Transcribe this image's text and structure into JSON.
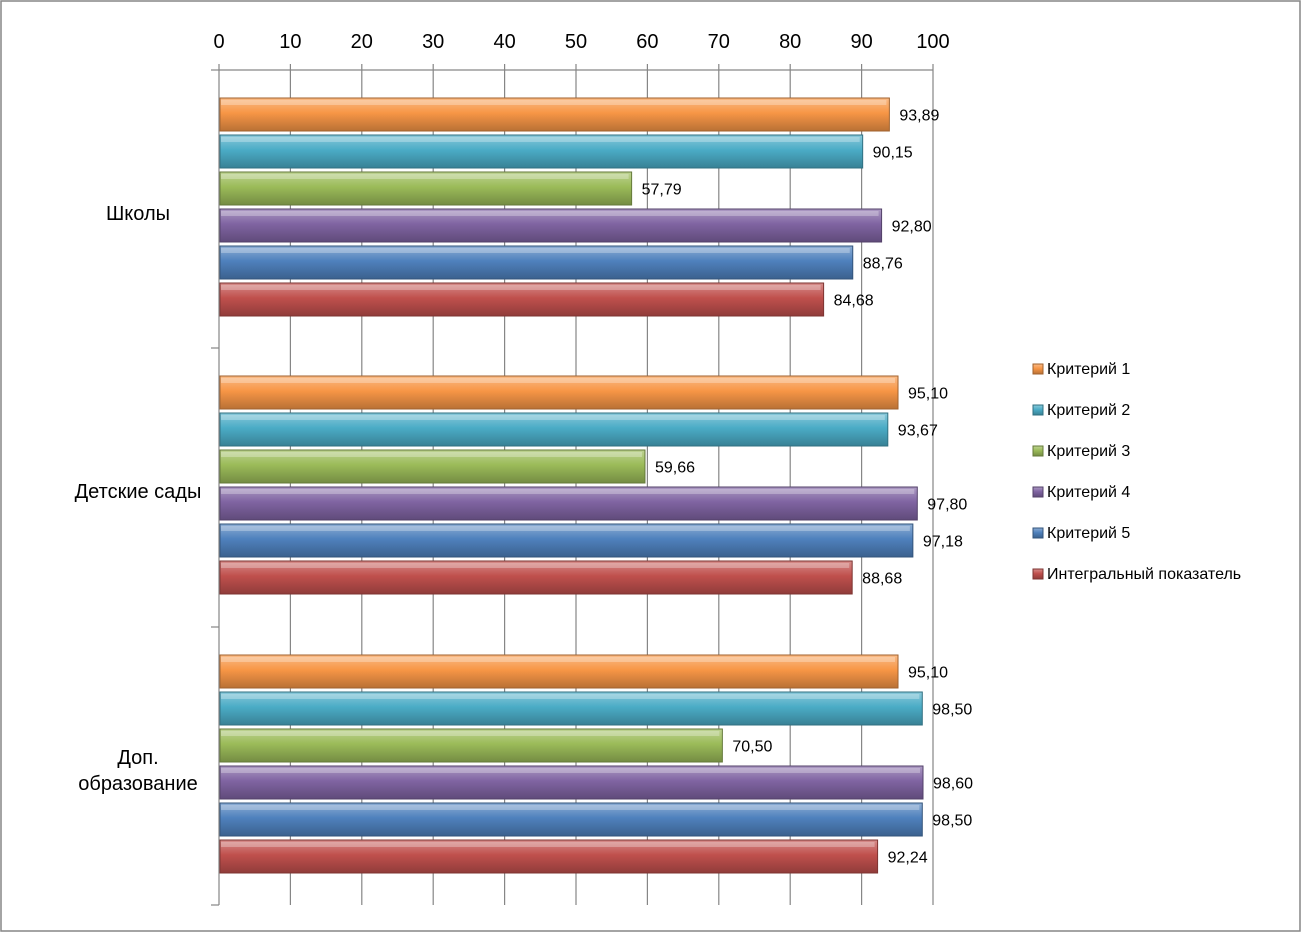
{
  "chart_data": {
    "type": "bar",
    "orientation": "horizontal",
    "xlim": [
      0,
      100
    ],
    "x_ticks": [
      "0",
      "10",
      "20",
      "30",
      "40",
      "50",
      "60",
      "70",
      "80",
      "90",
      "100"
    ],
    "x_axis_position": "top",
    "grid": true,
    "legend_position": "right",
    "categories": [
      [
        "Школы"
      ],
      [
        "Детские сады"
      ],
      [
        "Доп.",
        "образование"
      ]
    ],
    "series": [
      {
        "name": "Критерий 1",
        "color": "#f79646",
        "values": [
          93.89,
          95.1,
          95.1
        ],
        "labels": [
          "93,89",
          "95,10",
          "95,10"
        ]
      },
      {
        "name": "Критерий 2",
        "color": "#4bacc6",
        "values": [
          90.15,
          93.67,
          98.5
        ],
        "labels": [
          "90,15",
          "93,67",
          "98,50"
        ]
      },
      {
        "name": "Критерий 3",
        "color": "#9bbb59",
        "values": [
          57.79,
          59.66,
          70.5
        ],
        "labels": [
          "57,79",
          "59,66",
          "70,50"
        ]
      },
      {
        "name": "Критерий 4",
        "color": "#8064a2",
        "values": [
          92.8,
          97.8,
          98.6
        ],
        "labels": [
          "92,80",
          "97,80",
          "98,60"
        ]
      },
      {
        "name": "Критерий 5",
        "color": "#4f81bd",
        "values": [
          88.76,
          97.18,
          98.5
        ],
        "labels": [
          "88,76",
          "97,18",
          "98,50"
        ]
      },
      {
        "name": "Интегральный показатель",
        "color": "#c0504d",
        "values": [
          84.68,
          88.68,
          92.24
        ],
        "labels": [
          "84,68",
          "88,68",
          "92,24"
        ]
      }
    ]
  }
}
